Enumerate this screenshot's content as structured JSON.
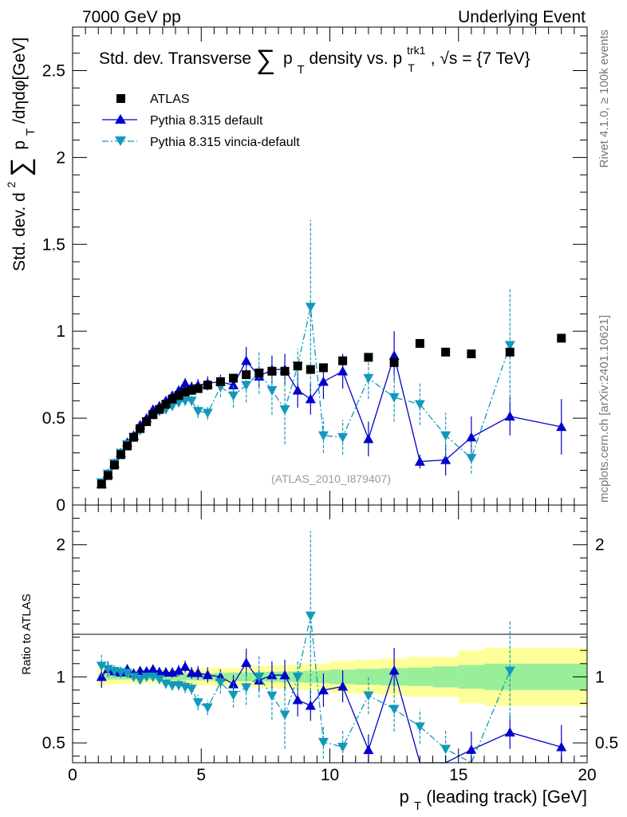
{
  "header": {
    "left": "7000 GeV pp",
    "right": "Underlying Event"
  },
  "side_text": {
    "top": "Rivet 4.1.0, ≥ 100k events",
    "bottom": "mcplots.cern.ch [arXiv:2401.10621]"
  },
  "chart_data": {
    "type": "scatter",
    "title": {
      "prefix": "Std. dev. Transverse",
      "sum": "∑",
      "p": "p",
      "sub": "T",
      "mid": " density vs. p",
      "sup": "trk1",
      "sub2": "T",
      "suffix": ", √s = {7 TeV}"
    },
    "ylabel": {
      "pre": "Std. dev. d",
      "sup": "2",
      "sum": "∑",
      "p": "p",
      "sub": "T",
      "post": "/dηdφ[GeV]"
    },
    "xlabel": {
      "p": "p",
      "sub": "T",
      "post": " (leading track) [GeV]"
    },
    "ratio_ylabel": "Ratio to ATLAS",
    "analysis_tag": "(ATLAS_2010_I879407)",
    "xlim": [
      0,
      20
    ],
    "ylim": [
      0,
      2.75
    ],
    "ratio_ylim": [
      0.35,
      2.3
    ],
    "x_ticks": [
      0,
      5,
      10,
      15,
      20
    ],
    "x_tick_labels": [
      "0",
      "5",
      "10",
      "15",
      "20"
    ],
    "y_ticks": [
      0,
      0.5,
      1,
      1.5,
      2,
      2.5
    ],
    "y_tick_labels": [
      "0",
      "0.5",
      "1",
      "1.5",
      "2",
      "2.5"
    ],
    "ratio_ticks": [
      0.5,
      1,
      2
    ],
    "ratio_tick_labels": [
      "0.5",
      "1",
      "2"
    ],
    "legend": [
      {
        "name": "ATLAS",
        "color": "#000000",
        "marker": "square"
      },
      {
        "name": "Pythia 8.315 default",
        "color": "#0000cc",
        "marker": "triangle-up",
        "line": "solid"
      },
      {
        "name": "Pythia 8.315 vincia-default",
        "color": "#1199bb",
        "marker": "triangle-down",
        "line": "dashdot"
      }
    ],
    "bins": [
      [
        1.0,
        1.25
      ],
      [
        1.25,
        1.5
      ],
      [
        1.5,
        1.75
      ],
      [
        1.75,
        2.0
      ],
      [
        2.0,
        2.25
      ],
      [
        2.25,
        2.5
      ],
      [
        2.5,
        2.75
      ],
      [
        2.75,
        3.0
      ],
      [
        3.0,
        3.25
      ],
      [
        3.25,
        3.5
      ],
      [
        3.5,
        3.75
      ],
      [
        3.75,
        4.0
      ],
      [
        4.0,
        4.25
      ],
      [
        4.25,
        4.5
      ],
      [
        4.5,
        4.75
      ],
      [
        4.75,
        5.0
      ],
      [
        5.0,
        5.5
      ],
      [
        5.5,
        6.0
      ],
      [
        6.0,
        6.5
      ],
      [
        6.5,
        7.0
      ],
      [
        7.0,
        7.5
      ],
      [
        7.5,
        8.0
      ],
      [
        8.0,
        8.5
      ],
      [
        8.5,
        9.0
      ],
      [
        9.0,
        9.5
      ],
      [
        9.5,
        10.0
      ],
      [
        10.0,
        11.0
      ],
      [
        11.0,
        12.0
      ],
      [
        12.0,
        13.0
      ],
      [
        13.0,
        14.0
      ],
      [
        14.0,
        15.0
      ],
      [
        15.0,
        16.0
      ],
      [
        16.0,
        18.0
      ],
      [
        18.0,
        20.0
      ]
    ],
    "series": [
      {
        "name": "ATLAS",
        "x": [
          1.125,
          1.375,
          1.625,
          1.875,
          2.125,
          2.375,
          2.625,
          2.875,
          3.125,
          3.375,
          3.625,
          3.875,
          4.125,
          4.375,
          4.625,
          4.875,
          5.25,
          5.75,
          6.25,
          6.75,
          7.25,
          7.75,
          8.25,
          8.75,
          9.25,
          9.75,
          10.5,
          11.5,
          12.5,
          13.5,
          14.5,
          15.5,
          17,
          19
        ],
        "values": [
          0.12,
          0.17,
          0.23,
          0.29,
          0.34,
          0.39,
          0.44,
          0.48,
          0.52,
          0.55,
          0.58,
          0.61,
          0.63,
          0.65,
          0.66,
          0.67,
          0.69,
          0.71,
          0.73,
          0.75,
          0.76,
          0.77,
          0.77,
          0.8,
          0.78,
          0.79,
          0.83,
          0.85,
          0.82,
          0.93,
          0.88,
          0.87,
          0.88,
          0.96
        ],
        "errors": [
          0.005,
          0.005,
          0.005,
          0.005,
          0.005,
          0.006,
          0.006,
          0.007,
          0.007,
          0.008,
          0.008,
          0.009,
          0.009,
          0.01,
          0.01,
          0.011,
          0.012,
          0.013,
          0.015,
          0.017,
          0.02,
          0.022,
          0.025,
          0.028,
          0.03,
          0.032,
          0.035,
          0.04,
          0.045,
          0.05,
          0.055,
          0.06,
          0.065,
          0.07
        ]
      },
      {
        "name": "Pythia 8.315 default",
        "x": [
          1.125,
          1.375,
          1.625,
          1.875,
          2.125,
          2.375,
          2.625,
          2.875,
          3.125,
          3.375,
          3.625,
          3.875,
          4.125,
          4.375,
          4.625,
          4.875,
          5.25,
          5.75,
          6.25,
          6.75,
          7.25,
          7.75,
          8.25,
          8.75,
          9.25,
          9.75,
          10.5,
          11.5,
          12.5,
          13.5,
          14.5,
          15.5,
          17,
          19
        ],
        "values": [
          0.12,
          0.18,
          0.24,
          0.3,
          0.36,
          0.4,
          0.46,
          0.5,
          0.55,
          0.57,
          0.6,
          0.63,
          0.66,
          0.7,
          0.68,
          0.69,
          0.7,
          0.71,
          0.69,
          0.83,
          0.74,
          0.78,
          0.78,
          0.66,
          0.61,
          0.71,
          0.77,
          0.38,
          0.86,
          0.25,
          0.26,
          0.39,
          0.51,
          0.45
        ],
        "errors": [
          0.01,
          0.01,
          0.01,
          0.012,
          0.012,
          0.014,
          0.015,
          0.016,
          0.018,
          0.02,
          0.022,
          0.024,
          0.026,
          0.03,
          0.03,
          0.035,
          0.04,
          0.04,
          0.05,
          0.08,
          0.06,
          0.08,
          0.09,
          0.1,
          0.09,
          0.1,
          0.1,
          0.1,
          0.14,
          0.04,
          0.09,
          0.12,
          0.11,
          0.16
        ]
      },
      {
        "name": "Pythia 8.315 vincia-default",
        "x": [
          1.125,
          1.375,
          1.625,
          1.875,
          2.125,
          2.375,
          2.625,
          2.875,
          3.125,
          3.375,
          3.625,
          3.875,
          4.125,
          4.375,
          4.625,
          4.875,
          5.25,
          5.75,
          6.25,
          6.75,
          7.25,
          7.75,
          8.25,
          8.75,
          9.25,
          9.75,
          10.5,
          11.5,
          12.5,
          13.5,
          14.5,
          15.5,
          17,
          19
        ],
        "values": [
          0.13,
          0.18,
          0.24,
          0.3,
          0.35,
          0.39,
          0.43,
          0.48,
          0.52,
          0.54,
          0.55,
          0.57,
          0.59,
          0.6,
          0.6,
          0.54,
          0.53,
          0.68,
          0.63,
          0.69,
          0.76,
          0.66,
          0.55,
          0.8,
          1.14,
          0.4,
          0.39,
          0.73,
          0.62,
          0.58,
          0.4,
          0.27,
          0.92,
          null
        ],
        "errors": [
          0.01,
          0.01,
          0.01,
          0.012,
          0.012,
          0.014,
          0.015,
          0.016,
          0.018,
          0.02,
          0.022,
          0.024,
          0.026,
          0.03,
          0.03,
          0.04,
          0.04,
          0.06,
          0.07,
          0.1,
          0.12,
          0.14,
          0.2,
          0.1,
          0.5,
          0.1,
          0.1,
          0.12,
          0.14,
          0.12,
          0.13,
          0.09,
          0.33,
          null
        ]
      }
    ],
    "ratio_band": {
      "inner_halfwidth": [
        0.02,
        0.02,
        0.02,
        0.02,
        0.02,
        0.02,
        0.02,
        0.02,
        0.022,
        0.022,
        0.024,
        0.024,
        0.025,
        0.025,
        0.026,
        0.027,
        0.028,
        0.03,
        0.032,
        0.034,
        0.036,
        0.038,
        0.04,
        0.042,
        0.045,
        0.048,
        0.055,
        0.06,
        0.065,
        0.07,
        0.08,
        0.09,
        0.1,
        0.1
      ],
      "outer_halfwidth": [
        0.07,
        0.06,
        0.06,
        0.05,
        0.05,
        0.05,
        0.05,
        0.05,
        0.05,
        0.05,
        0.06,
        0.06,
        0.06,
        0.06,
        0.06,
        0.065,
        0.065,
        0.07,
        0.07,
        0.075,
        0.08,
        0.085,
        0.09,
        0.095,
        0.1,
        0.1,
        0.12,
        0.13,
        0.14,
        0.15,
        0.15,
        0.2,
        0.22,
        0.22
      ],
      "inner_color": "#99ee99",
      "outer_color": "#ffff99"
    }
  }
}
